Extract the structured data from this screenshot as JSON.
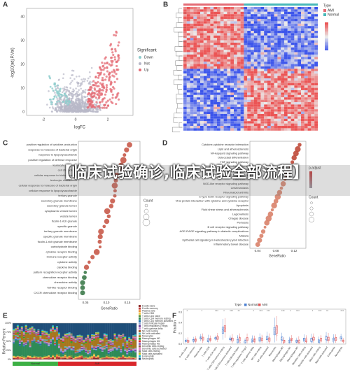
{
  "banner": "【临床试验确诊,临床试验全部流程】",
  "panel_a": {
    "label": "A",
    "x_label": "logFC",
    "y_label": "-log10(adj.P.Val)",
    "x_ticks": [
      "-2",
      "0",
      "2"
    ],
    "y_ticks": [
      "0",
      "10",
      "20",
      "30",
      "40"
    ],
    "legend_title": "Significant",
    "legend": [
      "Down",
      "Not",
      "Up"
    ]
  },
  "panel_b": {
    "label": "B",
    "legend_title": "Type",
    "legend": [
      "AMI",
      "Normal"
    ]
  },
  "panel_c": {
    "label": "C",
    "x_label": "GeneRatio",
    "x_ticks": [
      "0.05",
      "0.10",
      "0.15"
    ],
    "legend_title": "Count",
    "terms": [
      "positive regulation of cytokine production",
      "response to molecule of bacterial origin",
      "response to lipopolysaccharide",
      "positive regulation of defense response",
      "leukocyte migration",
      "cell chemotaxis",
      "cellular response to biotic stimulus",
      "leukocyte chemotaxis",
      "cellular response to molecule of bacterial origin",
      "cellular response to lipopolysaccharide",
      "tertiary granule",
      "secretory granule membrane",
      "secretory granule lumen",
      "cytoplasmic vesicle lumen",
      "vesicle lumen",
      "ficolin-1-rich granule",
      "specific granule",
      "tertiary granule membrane",
      "specific granule membrane",
      "ficolin-1-rich granule membrane",
      "carbohydrate binding",
      "cytokine receptor binding",
      "immune receptor activity",
      "cytokine activity",
      "cytokine binding",
      "pattern recognition receptor activity",
      "chemokine receptor binding",
      "chemokine activity",
      "Toll-like receptor binding",
      "CXCR chemokine receptor binding"
    ]
  },
  "panel_d": {
    "label": "D",
    "x_label": "GeneRatio",
    "x_ticks": [
      "0.04",
      "0.08",
      "0.12"
    ],
    "legend_titles": [
      "p.adjust",
      "Count"
    ],
    "terms": [
      "Cytokine-cytokine receptor interaction",
      "Lipid and atherosclerosis",
      "NF-kappa B signaling pathway",
      "Osteoclast differentiation",
      "TNF signaling pathway",
      "IL-17 signaling pathway",
      "Toll-like receptor signaling pathway",
      "Alcoholic liver disease",
      "Tuberculosis",
      "NOD-like receptor signaling pathway",
      "Leishmaniasis",
      "Rheumatoid arthritis",
      "C-type lectin receptor signaling pathway",
      "Viral protein interaction with cytokine and cytokine receptor",
      "Apoptosis",
      "Fluid shear stress and atherosclerosis",
      "Legionellosis",
      "Chagas disease",
      "Pertussis",
      "B cell receptor signaling pathway",
      "AGE-RAGE signaling pathway in diabetic complications",
      "Malaria",
      "Epithelial cell signaling in Helicobacter pylori infection",
      "Inflammatory bowel disease"
    ]
  },
  "panel_e": {
    "label": "E",
    "y_label": "Relative Percent",
    "y_ticks": [
      "0%",
      "25%",
      "50%",
      "75%",
      "100%"
    ],
    "groups": [
      "Normal",
      "AMI"
    ],
    "cell_types": [
      "B cells naive",
      "B cells memory",
      "Plasma cells",
      "T cells CD8",
      "T cells CD4 naive",
      "T cells CD4 memory resting",
      "T cells CD4 memory activated",
      "T cells follicular helper",
      "T cells regulatory (Tregs)",
      "T cells gamma delta",
      "NK cells resting",
      "NK cells activated",
      "Monocytes",
      "Macrophages M0",
      "Macrophages M1",
      "Macrophages M2",
      "Dendritic cells resting",
      "Dendritic cells activated",
      "Mast cells resting",
      "Mast cells activated",
      "Eosinophils",
      "Neutrophils"
    ]
  },
  "panel_f": {
    "label": "F",
    "y_label": "Fraction",
    "y_ticks": [
      "0.0",
      "0.2",
      "0.4",
      "0.6"
    ],
    "legend_title": "Type",
    "legend": [
      "Normal",
      "AMI"
    ],
    "significance": [
      "*",
      null,
      "*",
      null,
      "***",
      "*",
      "***",
      "**",
      null,
      "*",
      "***",
      "***",
      null,
      "***",
      "*",
      "***",
      null,
      "*",
      "***",
      "**",
      null,
      "***"
    ]
  }
}
